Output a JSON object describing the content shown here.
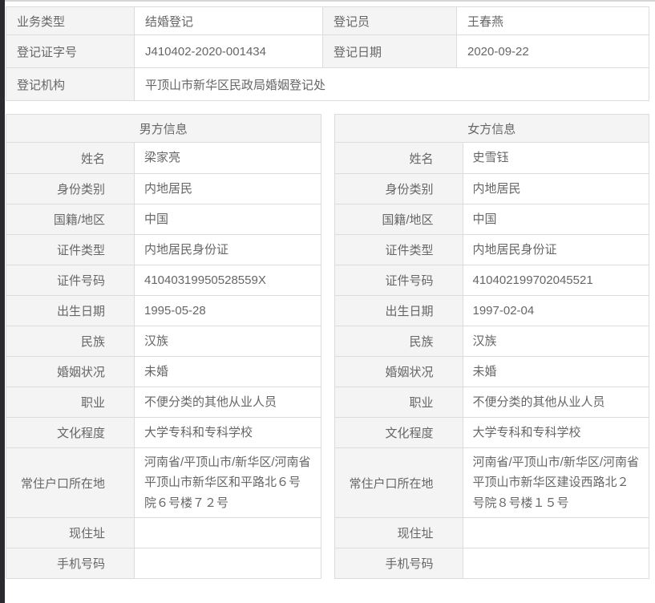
{
  "colors": {
    "label_background": "#f4f4f5",
    "border": "#dcdcdc",
    "text": "#666666",
    "edge_strip": "#2b2b2f"
  },
  "summary": {
    "rows": [
      {
        "l1": "业务类型",
        "v1": "结婚登记",
        "l2": "登记员",
        "v2": "王春燕"
      },
      {
        "l1": "登记证字号",
        "v1": "J410402-2020-001434",
        "l2": "登记日期",
        "v2": "2020-09-22"
      },
      {
        "l1": "登记机构",
        "v1": "平顶山市新华区民政局婚姻登记处"
      }
    ]
  },
  "male": {
    "title": "男方信息",
    "rows": [
      {
        "label": "姓名",
        "value": "梁家亮"
      },
      {
        "label": "身份类别",
        "value": "内地居民"
      },
      {
        "label": "国籍/地区",
        "value": "中国"
      },
      {
        "label": "证件类型",
        "value": "内地居民身份证"
      },
      {
        "label": "证件号码",
        "value": "41040319950528559X"
      },
      {
        "label": "出生日期",
        "value": "1995-05-28"
      },
      {
        "label": "民族",
        "value": "汉族"
      },
      {
        "label": "婚姻状况",
        "value": "未婚"
      },
      {
        "label": "职业",
        "value": "不便分类的其他从业人员"
      },
      {
        "label": "文化程度",
        "value": "大学专科和专科学校"
      },
      {
        "label": "常住户口所在地",
        "value": "河南省/平顶山市/新华区/河南省平顶山市新华区和平路北６号院６号楼７２号"
      },
      {
        "label": "现住址",
        "value": ""
      },
      {
        "label": "手机号码",
        "value": ""
      }
    ]
  },
  "female": {
    "title": "女方信息",
    "rows": [
      {
        "label": "姓名",
        "value": "史雪钰"
      },
      {
        "label": "身份类别",
        "value": "内地居民"
      },
      {
        "label": "国籍/地区",
        "value": "中国"
      },
      {
        "label": "证件类型",
        "value": "内地居民身份证"
      },
      {
        "label": "证件号码",
        "value": "410402199702045521"
      },
      {
        "label": "出生日期",
        "value": "1997-02-04"
      },
      {
        "label": "民族",
        "value": "汉族"
      },
      {
        "label": "婚姻状况",
        "value": "未婚"
      },
      {
        "label": "职业",
        "value": "不便分类的其他从业人员"
      },
      {
        "label": "文化程度",
        "value": "大学专科和专科学校"
      },
      {
        "label": "常住户口所在地",
        "value": "河南省/平顶山市/新华区/河南省平顶山市新华区建设西路北２号院８号楼１５号"
      },
      {
        "label": "现住址",
        "value": ""
      },
      {
        "label": "手机号码",
        "value": ""
      }
    ]
  }
}
